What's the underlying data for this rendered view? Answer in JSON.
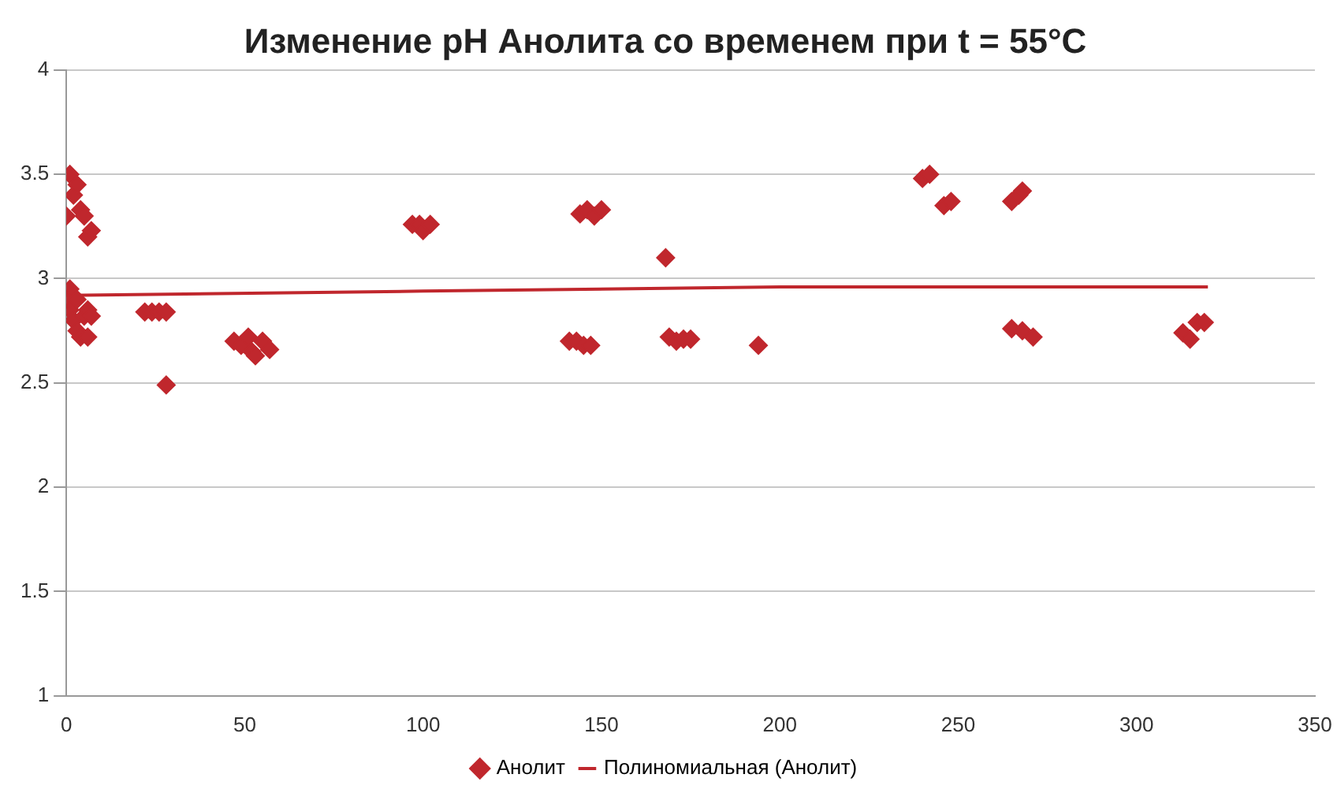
{
  "chart_data": {
    "type": "scatter",
    "title": "Изменение pH Анолита со временем при t = 55°C",
    "series": [
      {
        "name": "Анолит",
        "color": "#c0272d",
        "marker": "diamond",
        "x": [
          0,
          1,
          2,
          3,
          4,
          5,
          6,
          7,
          1,
          0,
          1,
          2,
          3,
          4,
          6,
          5,
          6,
          3,
          7,
          22,
          24,
          26,
          28,
          28,
          47,
          49,
          51,
          52,
          53,
          55,
          57,
          97,
          99,
          100,
          102,
          141,
          143,
          145,
          147,
          144,
          146,
          148,
          150,
          168,
          169,
          171,
          173,
          175,
          194,
          240,
          242,
          246,
          248,
          265,
          267,
          268,
          265,
          268,
          271,
          313,
          315,
          317,
          319
        ],
        "values": [
          3.3,
          3.5,
          3.4,
          3.45,
          3.33,
          3.3,
          3.2,
          3.23,
          2.95,
          2.9,
          2.85,
          2.8,
          2.75,
          2.72,
          2.72,
          2.82,
          2.85,
          2.9,
          2.82,
          2.84,
          2.84,
          2.84,
          2.84,
          2.49,
          2.7,
          2.68,
          2.72,
          2.65,
          2.63,
          2.7,
          2.66,
          3.26,
          3.26,
          3.23,
          3.26,
          2.7,
          2.7,
          2.68,
          2.68,
          3.31,
          3.33,
          3.3,
          3.33,
          3.1,
          2.72,
          2.7,
          2.71,
          2.71,
          2.68,
          3.48,
          3.5,
          3.35,
          3.37,
          3.37,
          3.4,
          3.42,
          2.76,
          2.75,
          2.72,
          2.74,
          2.71,
          2.79,
          2.79
        ]
      },
      {
        "name": "Полиномиальная (Анолит)",
        "type": "line",
        "color": "#c0272d",
        "marker": "none",
        "line_style": "solid",
        "x": [
          0,
          100,
          200,
          320
        ],
        "values": [
          2.92,
          2.94,
          2.96,
          2.96
        ]
      }
    ],
    "xlim": [
      0,
      350
    ],
    "xticks": [
      0,
      50,
      100,
      150,
      200,
      250,
      300,
      350
    ],
    "ylim": [
      1,
      4
    ],
    "yticks": [
      1,
      1.5,
      2,
      2.5,
      3,
      3.5,
      4
    ],
    "grid": "y",
    "legend": "bottom"
  }
}
